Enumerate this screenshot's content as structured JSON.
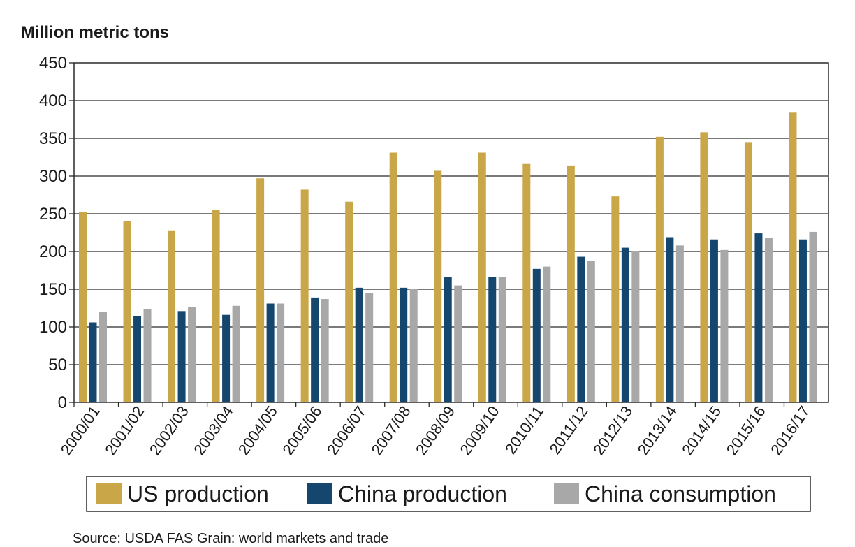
{
  "chart_data": {
    "type": "bar",
    "ylabel": "Million metric tons",
    "xlabel": "",
    "title": "",
    "ylim": [
      0,
      450
    ],
    "yticks": [
      0,
      50,
      100,
      150,
      200,
      250,
      300,
      350,
      400,
      450
    ],
    "grid": true,
    "legend_position": "bottom",
    "categories": [
      "2000/01",
      "2001/02",
      "2002/03",
      "2003/04",
      "2004/05",
      "2005/06",
      "2006/07",
      "2007/08",
      "2008/09",
      "2009/10",
      "2010/11",
      "2011/12",
      "2012/13",
      "2013/14",
      "2014/15",
      "2015/16",
      "2016/17"
    ],
    "series": [
      {
        "name": "US production",
        "color": "#c9a648",
        "values": [
          252,
          240,
          228,
          255,
          297,
          282,
          266,
          331,
          307,
          331,
          316,
          314,
          273,
          352,
          358,
          345,
          384
        ]
      },
      {
        "name": "China production",
        "color": "#15476e",
        "values": [
          106,
          114,
          121,
          116,
          131,
          139,
          152,
          152,
          166,
          166,
          177,
          193,
          205,
          219,
          216,
          224,
          216
        ]
      },
      {
        "name": "China consumption",
        "color": "#a8a8a8",
        "values": [
          120,
          124,
          126,
          128,
          131,
          137,
          145,
          150,
          155,
          166,
          180,
          188,
          200,
          208,
          202,
          218,
          226
        ]
      }
    ],
    "source": "Source: USDA FAS Grain: world markets and trade"
  }
}
